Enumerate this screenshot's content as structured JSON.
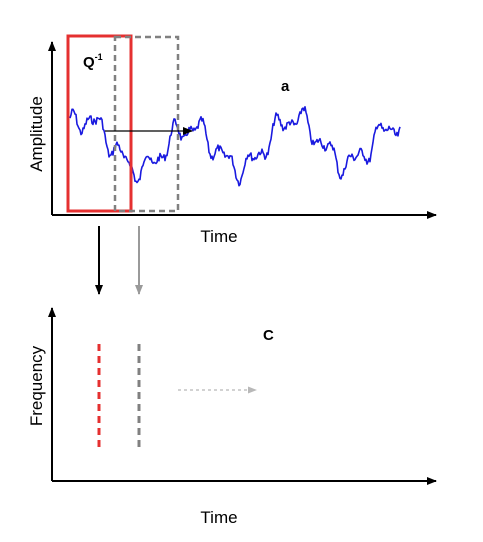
{
  "top_panel": {
    "window_label": "Q",
    "window_label_sup": "-1",
    "panel_letter": "a",
    "ylabel": "Amplitude",
    "xlabel": "Time"
  },
  "bottom_panel": {
    "panel_letter": "C",
    "ylabel": "Frequency",
    "xlabel": "Time"
  },
  "colors": {
    "signal": "#1a1adf",
    "window_current": "#e53030",
    "window_next": "#808080",
    "axis": "#000000",
    "arrow_shift": "#000000",
    "arrow_down_current": "#000000",
    "arrow_down_next": "#9a9a9a",
    "arrow_dotted": "#b0b0b0"
  }
}
